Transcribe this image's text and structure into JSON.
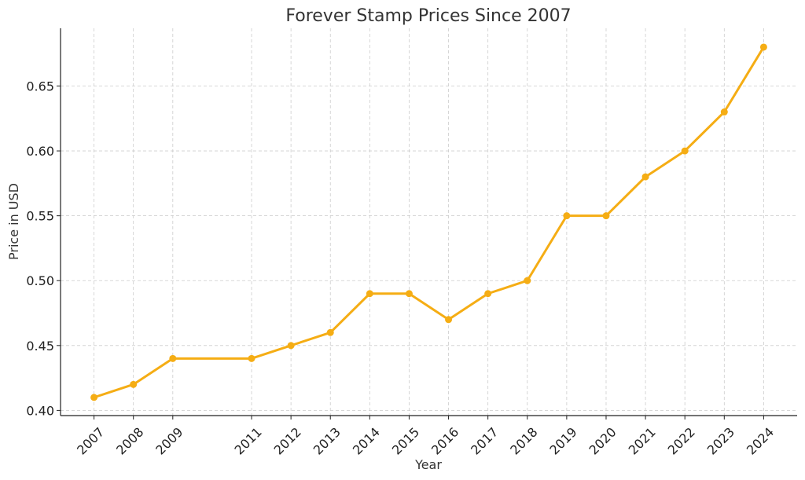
{
  "chart_data": {
    "type": "line",
    "title": "Forever Stamp Prices Since 2007",
    "xlabel": "Year",
    "ylabel": "Price in USD",
    "x": [
      2007,
      2008,
      2009,
      2011,
      2012,
      2013,
      2014,
      2015,
      2016,
      2017,
      2018,
      2019,
      2020,
      2021,
      2022,
      2023,
      2024
    ],
    "series": [
      {
        "values": [
          0.41,
          0.42,
          0.44,
          0.44,
          0.45,
          0.46,
          0.49,
          0.49,
          0.47,
          0.49,
          0.5,
          0.55,
          0.55,
          0.58,
          0.6,
          0.63,
          0.68
        ],
        "color": "#f5ad14"
      }
    ],
    "yticks": [
      "0.40",
      "0.45",
      "0.50",
      "0.55",
      "0.60",
      "0.65"
    ],
    "xlim": [
      2006.15,
      2024.85
    ],
    "ylim": [
      0.396,
      0.6945
    ],
    "grid": true
  }
}
